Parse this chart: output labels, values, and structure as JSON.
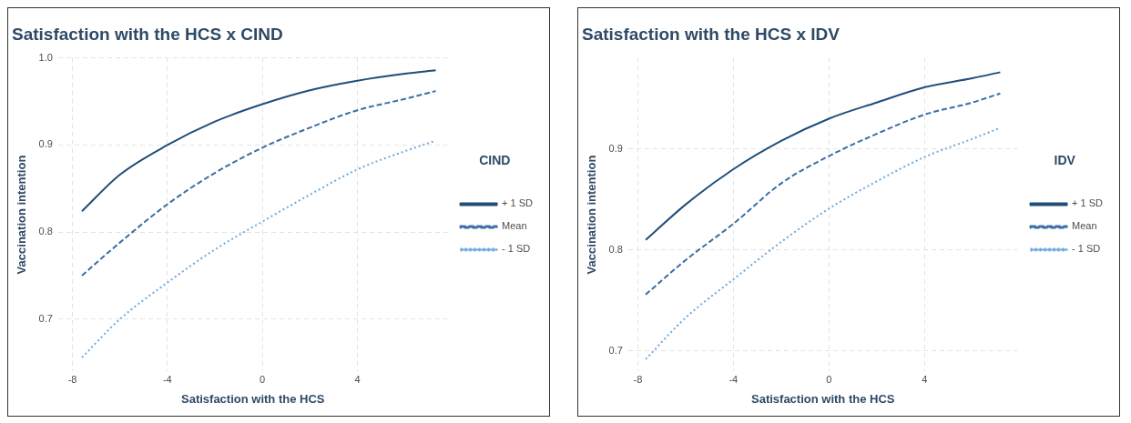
{
  "chart_data": [
    {
      "type": "line",
      "title": "Satisfaction with the HCS x CIND",
      "xlabel": "Satisfaction with the HCS",
      "ylabel": "Vaccination intention",
      "legend_title": "CIND",
      "legend": "right",
      "grid": true,
      "marker": "none",
      "xlim": [
        -8.6,
        7.8
      ],
      "xticks": [
        -8,
        -4,
        0,
        4
      ],
      "ylim": [
        0.64,
        1.0
      ],
      "yticks": [
        0.7,
        0.8,
        0.9,
        {
          "value": 1,
          "label": "1.0"
        }
      ],
      "series": [
        {
          "name": "+ 1 SD",
          "color": "#1f4e79",
          "line_style": "solid",
          "x": [
            -7.6,
            -6,
            -4,
            -2,
            0,
            2,
            4,
            6,
            7.3
          ],
          "values": [
            0.824,
            0.866,
            0.9,
            0.927,
            0.947,
            0.963,
            0.974,
            0.982,
            0.986
          ]
        },
        {
          "name": "Mean",
          "color": "#3a6ea5",
          "line_style": "dashed",
          "x": [
            -7.6,
            -6,
            -4,
            -2,
            0,
            2,
            4,
            6,
            7.3
          ],
          "values": [
            0.75,
            0.788,
            0.832,
            0.868,
            0.897,
            0.92,
            0.94,
            0.953,
            0.962
          ]
        },
        {
          "name": "- 1 SD",
          "color": "#6fa8dc",
          "line_style": "dotted",
          "x": [
            -7.6,
            -6,
            -4,
            -2,
            0,
            2,
            4,
            6,
            7.3
          ],
          "values": [
            0.656,
            0.7,
            0.742,
            0.78,
            0.812,
            0.843,
            0.872,
            0.893,
            0.905
          ]
        }
      ]
    },
    {
      "type": "line",
      "title": "Satisfaction with the HCS x IDV",
      "xlabel": "Satisfaction with the HCS",
      "ylabel": "Vaccination intention",
      "legend_title": "IDV",
      "legend": "right",
      "grid": true,
      "marker": "none",
      "xlim": [
        -8.4,
        7.9
      ],
      "xticks": [
        -8,
        -4,
        0,
        4
      ],
      "ylim": [
        0.68,
        0.99
      ],
      "yticks": [
        0.7,
        0.8,
        0.9
      ],
      "series": [
        {
          "name": "+ 1 SD",
          "color": "#1f4e79",
          "line_style": "solid",
          "x": [
            -7.67,
            -6,
            -4,
            -2,
            0,
            2,
            4,
            6,
            7.17
          ],
          "values": [
            0.81,
            0.845,
            0.88,
            0.908,
            0.93,
            0.946,
            0.961,
            0.97,
            0.976
          ]
        },
        {
          "name": "Mean",
          "color": "#3a6ea5",
          "line_style": "dashed",
          "x": [
            -7.67,
            -6,
            -4,
            -2,
            0,
            2,
            4,
            6,
            7.17
          ],
          "values": [
            0.756,
            0.79,
            0.826,
            0.866,
            0.893,
            0.915,
            0.934,
            0.946,
            0.955
          ]
        },
        {
          "name": "- 1 SD",
          "color": "#6fa8dc",
          "line_style": "dotted",
          "x": [
            -7.67,
            -6,
            -4,
            -2,
            0,
            2,
            4,
            6,
            7.17
          ],
          "values": [
            0.692,
            0.733,
            0.771,
            0.808,
            0.841,
            0.868,
            0.892,
            0.91,
            0.921
          ]
        }
      ]
    }
  ]
}
